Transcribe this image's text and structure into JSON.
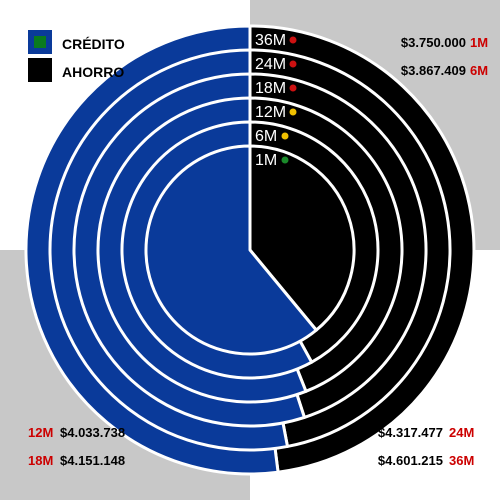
{
  "legend": {
    "items": [
      {
        "label": "CRÉDITO",
        "swatch_color": "#0a7a1e",
        "box_color": "#0a3a9a"
      },
      {
        "label": "AHORRO",
        "swatch_color": "#000000",
        "box_color": "#000000"
      }
    ]
  },
  "colors": {
    "credito": "#0a3a9a",
    "ahorro": "#000000",
    "quadrant_gray": "#c8c8c8",
    "separator": "#ffffff",
    "term_accent": "#cc0000"
  },
  "chart_data": {
    "type": "pie",
    "subtype": "concentric-rings",
    "series_names": [
      "CRÉDITO",
      "AHORRO"
    ],
    "rings": [
      {
        "label": "1M",
        "ahorro_share": 0.39,
        "credito_share": 0.61,
        "status_color": "#1a8a2a"
      },
      {
        "label": "6M",
        "ahorro_share": 0.42,
        "credito_share": 0.58,
        "status_color": "#f0c000"
      },
      {
        "label": "12M",
        "ahorro_share": 0.44,
        "credito_share": 0.56,
        "status_color": "#f0c000"
      },
      {
        "label": "18M",
        "ahorro_share": 0.45,
        "credito_share": 0.55,
        "status_color": "#cc1111"
      },
      {
        "label": "24M",
        "ahorro_share": 0.47,
        "credito_share": 0.53,
        "status_color": "#cc1111"
      },
      {
        "label": "36M",
        "ahorro_share": 0.48,
        "credito_share": 0.52,
        "status_color": "#cc1111"
      }
    ],
    "annotations": [
      {
        "corner": "top-right",
        "value": "$3.750.000",
        "term": "1M"
      },
      {
        "corner": "top-right",
        "value": "$3.867.409",
        "term": "6M"
      },
      {
        "corner": "bottom-left",
        "value": "$4.033.738",
        "term": "12M"
      },
      {
        "corner": "bottom-left",
        "value": "$4.151.148",
        "term": "18M"
      },
      {
        "corner": "bottom-right",
        "value": "$4.317.477",
        "term": "24M"
      },
      {
        "corner": "bottom-right",
        "value": "$4.601.215",
        "term": "36M"
      }
    ]
  }
}
